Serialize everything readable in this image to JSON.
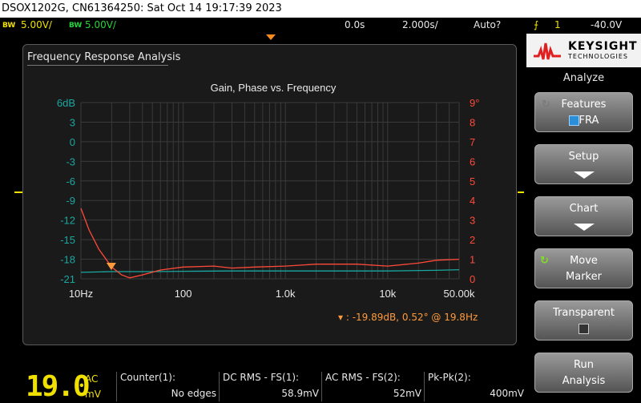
{
  "titlebar": {
    "text": "DSOX1202G, CN61364250: Sat Oct 14 19:17:39 2023"
  },
  "status": {
    "ch1_bw": "BW",
    "ch1_scale": "5.00V/",
    "ch2_bw": "BW",
    "ch2_scale": "5.00V/",
    "time_offset": "0.0s",
    "time_scale": "2.000s/",
    "trigger_mode": "Auto?",
    "trigger_symbol": "⨍",
    "trigger_channel": "1",
    "trigger_level": "-40.0V"
  },
  "fra": {
    "window_title": "Frequency Response Analysis",
    "marker_readout": ":  -19.89dB, 0.52° @ 19.8Hz"
  },
  "chart_data": {
    "type": "line",
    "title": "Gain, Phase vs. Frequency",
    "x_scale": "log",
    "x_range": [
      10,
      50000
    ],
    "x_ticks": [
      "10Hz",
      "100",
      "1.0k",
      "10k",
      "50.00k"
    ],
    "y_left_ticks": [
      "6dB",
      "3",
      "0",
      "-3",
      "-6",
      "-9",
      "-12",
      "-15",
      "-18",
      "-21"
    ],
    "y_left_range": [
      -21,
      6
    ],
    "y_right_ticks": [
      "9°",
      "8",
      "7",
      "6",
      "5",
      "4",
      "3",
      "2",
      "1",
      "0"
    ],
    "y_right_range": [
      0,
      9
    ],
    "colors": {
      "gain": "#1aa7a0",
      "phase": "#ff4a3a",
      "marker": "#ff9a3a",
      "grid": "#3a3a3a"
    },
    "series": [
      {
        "axis": "left",
        "x": [
          10,
          15,
          20,
          30,
          50,
          100,
          300,
          1000,
          3000,
          10000,
          30000,
          50000
        ],
        "y": [
          -20.0,
          -19.95,
          -19.9,
          -19.9,
          -19.9,
          -19.85,
          -19.8,
          -19.8,
          -19.8,
          -19.8,
          -19.7,
          -19.6
        ]
      },
      {
        "axis": "right",
        "x": [
          10,
          12,
          15,
          20,
          25,
          30,
          40,
          60,
          100,
          200,
          300,
          500,
          1000,
          2000,
          5000,
          10000,
          20000,
          30000,
          50000
        ],
        "y": [
          3.6,
          2.5,
          1.5,
          0.6,
          0.2,
          0.05,
          0.2,
          0.45,
          0.6,
          0.65,
          0.55,
          0.6,
          0.65,
          0.75,
          0.75,
          0.65,
          0.8,
          0.95,
          1.0
        ]
      }
    ],
    "marker": {
      "x": 19.8,
      "gain": -19.89,
      "phase": 0.52
    }
  },
  "sidebar": {
    "brand_name": "KEYSIGHT",
    "brand_sub": "TECHNOLOGIES",
    "menu_title": "Analyze",
    "features_label": "Features",
    "features_value": "FRA",
    "setup_label": "Setup",
    "chart_label": "Chart",
    "move_marker_l1": "Move",
    "move_marker_l2": "Marker",
    "transparent_label": "Transparent",
    "run_l1": "Run",
    "run_l2": "Analysis"
  },
  "bottom": {
    "big_value": "19.0",
    "ac": "AC",
    "unit": "mV",
    "counter_label": "Counter(1):",
    "counter_value": "No edges",
    "dcrms_label": "DC RMS - FS(1):",
    "dcrms_value": "58.9mV",
    "acrms_label": "AC RMS - FS(2):",
    "acrms_value": "52mV",
    "pkpk_label": "Pk-Pk(2):",
    "pkpk_value": "400mV"
  }
}
